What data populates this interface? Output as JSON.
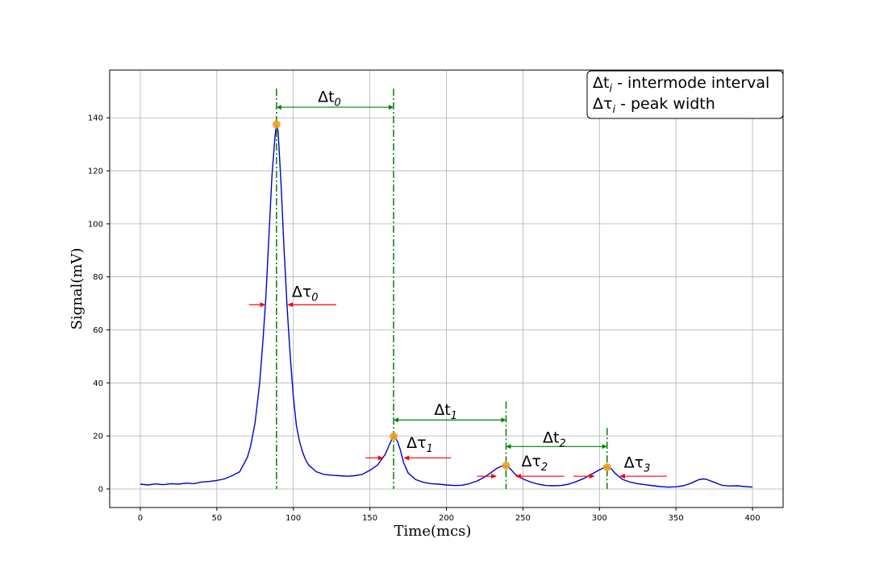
{
  "chart_data": {
    "type": "line",
    "xlabel": "Time(mcs)",
    "ylabel": "Signal(mV)",
    "xlim": [
      -20,
      420
    ],
    "ylim": [
      -7,
      158
    ],
    "xticks": [
      0,
      50,
      100,
      150,
      200,
      250,
      300,
      350,
      400
    ],
    "yticks": [
      0,
      20,
      40,
      60,
      80,
      100,
      120,
      140
    ],
    "grid": true,
    "line_color": "#0000cc",
    "series": [
      {
        "x": [
          0,
          5,
          10,
          15,
          20,
          25,
          30,
          35,
          40,
          45,
          50,
          55,
          60,
          65,
          70,
          72,
          75,
          78,
          80,
          82,
          84,
          86,
          88,
          89,
          90,
          92,
          94,
          96,
          98,
          100,
          102,
          104,
          106,
          108,
          110,
          115,
          120,
          125,
          130,
          135,
          140,
          145,
          150,
          155,
          160,
          163,
          165,
          166,
          168,
          170,
          172,
          175,
          180,
          185,
          190,
          195,
          200,
          205,
          210,
          215,
          220,
          225,
          230,
          233,
          236,
          238,
          239,
          240,
          242,
          245,
          250,
          255,
          260,
          265,
          270,
          275,
          280,
          285,
          290,
          295,
          300,
          303,
          305,
          306,
          308,
          310,
          315,
          320,
          325,
          330,
          335,
          340,
          345,
          350,
          355,
          360,
          365,
          368,
          370,
          375,
          380,
          385,
          390,
          395,
          400
        ],
        "y": [
          1.8,
          1.5,
          1.9,
          1.6,
          2.0,
          1.8,
          2.2,
          2.0,
          2.6,
          2.8,
          3.2,
          3.8,
          5.0,
          6.5,
          12.0,
          16.0,
          25.0,
          40.0,
          55.0,
          72.0,
          95.0,
          118.0,
          133.0,
          137.5,
          135.0,
          115.0,
          90.0,
          68.0,
          50.0,
          35.0,
          24.0,
          18.0,
          14.0,
          11.0,
          9.0,
          6.5,
          5.5,
          5.2,
          5.0,
          4.8,
          5.0,
          5.5,
          7.0,
          9.0,
          13.0,
          17.0,
          19.5,
          19.8,
          18.0,
          14.5,
          10.0,
          6.0,
          3.5,
          2.5,
          2.0,
          1.8,
          1.5,
          1.3,
          1.4,
          2.0,
          3.0,
          4.5,
          6.5,
          7.8,
          8.6,
          8.8,
          8.7,
          8.5,
          7.5,
          5.5,
          3.8,
          2.6,
          1.8,
          1.3,
          1.2,
          1.3,
          1.8,
          2.8,
          4.0,
          5.6,
          7.2,
          8.0,
          8.2,
          8.0,
          7.5,
          6.0,
          3.6,
          2.6,
          2.0,
          1.6,
          1.2,
          0.9,
          0.7,
          0.8,
          1.2,
          2.2,
          3.5,
          3.8,
          3.6,
          2.5,
          1.4,
          1.1,
          1.2,
          0.9,
          0.7
        ]
      }
    ],
    "peaks": {
      "color": "#f0a11e",
      "points": [
        {
          "x": 89,
          "y": 137.5
        },
        {
          "x": 165.5,
          "y": 19.8
        },
        {
          "x": 239,
          "y": 8.8
        },
        {
          "x": 305,
          "y": 8.2
        }
      ]
    },
    "intervals": {
      "color": "#008000",
      "vlines": [
        {
          "x": 89,
          "ytop": 151
        },
        {
          "x": 165.5,
          "ytop": 151
        },
        {
          "x": 239,
          "ytop": 33
        },
        {
          "x": 305,
          "ytop": 23
        }
      ],
      "spans": [
        {
          "x1": 89,
          "x2": 165.5,
          "y": 144,
          "label": "Δt",
          "sub": "0",
          "lx": 116,
          "ly": 146
        },
        {
          "x1": 165.5,
          "x2": 239,
          "y": 26,
          "label": "Δt",
          "sub": "1",
          "lx": 192,
          "ly": 28
        },
        {
          "x1": 239,
          "x2": 305,
          "y": 16,
          "label": "Δt",
          "sub": "2",
          "lx": 263,
          "ly": 17.5
        }
      ]
    },
    "widths": {
      "color": "#ff0000",
      "items": [
        {
          "left_from": 71,
          "left_to": 82,
          "right_from": 128,
          "right_to": 96,
          "y": 69.5,
          "label": "Δτ",
          "sub": "0",
          "lx": 99,
          "ly": 72.5
        },
        {
          "left_from": 147,
          "left_to": 159,
          "right_from": 203,
          "right_to": 172,
          "y": 11.7,
          "label": "Δτ",
          "sub": "1",
          "lx": 174,
          "ly": 15.5
        },
        {
          "left_from": 220,
          "left_to": 233,
          "right_from": 277,
          "right_to": 245,
          "y": 4.8,
          "label": "Δτ",
          "sub": "2",
          "lx": 249,
          "ly": 8.5
        },
        {
          "left_from": 283,
          "left_to": 297,
          "right_from": 344,
          "right_to": 313,
          "y": 4.8,
          "label": "Δτ",
          "sub": "3",
          "lx": 316,
          "ly": 8.0
        }
      ]
    },
    "legend": {
      "placement": "upper-right",
      "entries": [
        {
          "label": "Δt",
          "sub": "i",
          "text": " - intermode interval"
        },
        {
          "label": "Δτ",
          "sub": "i",
          "text": " - peak width"
        }
      ]
    }
  }
}
